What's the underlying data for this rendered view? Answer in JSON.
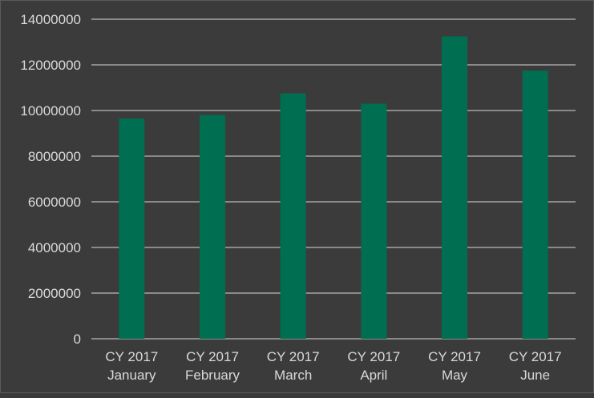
{
  "chart_data": {
    "type": "bar",
    "categories": [
      [
        "CY 2017",
        "January"
      ],
      [
        "CY 2017",
        "February"
      ],
      [
        "CY 2017",
        "March"
      ],
      [
        "CY 2017",
        "April"
      ],
      [
        "CY 2017",
        "May"
      ],
      [
        "CY 2017",
        "June"
      ]
    ],
    "values": [
      9650000,
      9800000,
      10750000,
      10300000,
      13250000,
      11750000
    ],
    "ylim": [
      0,
      14000000
    ],
    "yticks": [
      "0",
      "2000000",
      "4000000",
      "6000000",
      "8000000",
      "10000000",
      "12000000",
      "14000000"
    ],
    "title": "",
    "xlabel": "",
    "ylabel": "",
    "grid": true,
    "legend": "none",
    "colors": {
      "bar": "#006e51",
      "background": "#3b3b3b",
      "grid": "#d9d9d9",
      "text": "#d9d9d9"
    }
  }
}
